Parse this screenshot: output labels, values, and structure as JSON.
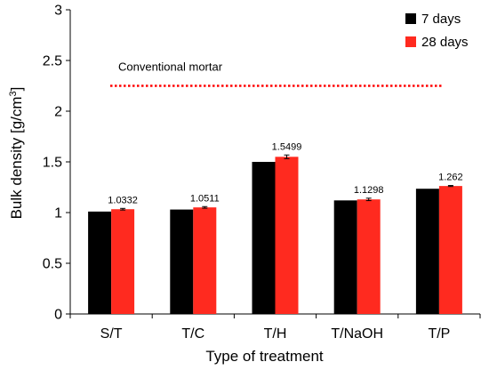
{
  "chart_data": {
    "type": "bar",
    "title": "",
    "xlabel": "Type of treatment",
    "ylabel_text": "Bulk density [g/cm",
    "ylabel_sup": "3",
    "ylabel_close": "]",
    "categories": [
      "S/T",
      "T/C",
      "T/H",
      "T/NaOH",
      "T/P"
    ],
    "ylim": [
      0,
      3
    ],
    "yticks": [
      0,
      0.5,
      1,
      1.5,
      2,
      2.5,
      3
    ],
    "ytick_labels": [
      "0",
      "0.5",
      "1",
      "1.5",
      "2",
      "2.5",
      "3"
    ],
    "grid": false,
    "legend_position": "top-right",
    "series": [
      {
        "name": "7 days",
        "color": "#000000",
        "values": [
          1.01,
          1.03,
          1.5,
          1.12,
          1.235
        ],
        "errors": [
          0,
          0,
          0,
          0,
          0
        ]
      },
      {
        "name": "28 days",
        "color": "#ff2a1f",
        "values": [
          1.0332,
          1.0511,
          1.5499,
          1.1298,
          1.262
        ],
        "errors": [
          0.008,
          0.008,
          0.018,
          0.012,
          0.005
        ]
      }
    ],
    "data_labels": [
      "1.0332",
      "1.0511",
      "1.5499",
      "1.1298",
      "1.262"
    ],
    "reference_line": {
      "label": "Conventional mortar",
      "value": 2.25,
      "color": "#ff0000",
      "style": "dotted"
    }
  }
}
